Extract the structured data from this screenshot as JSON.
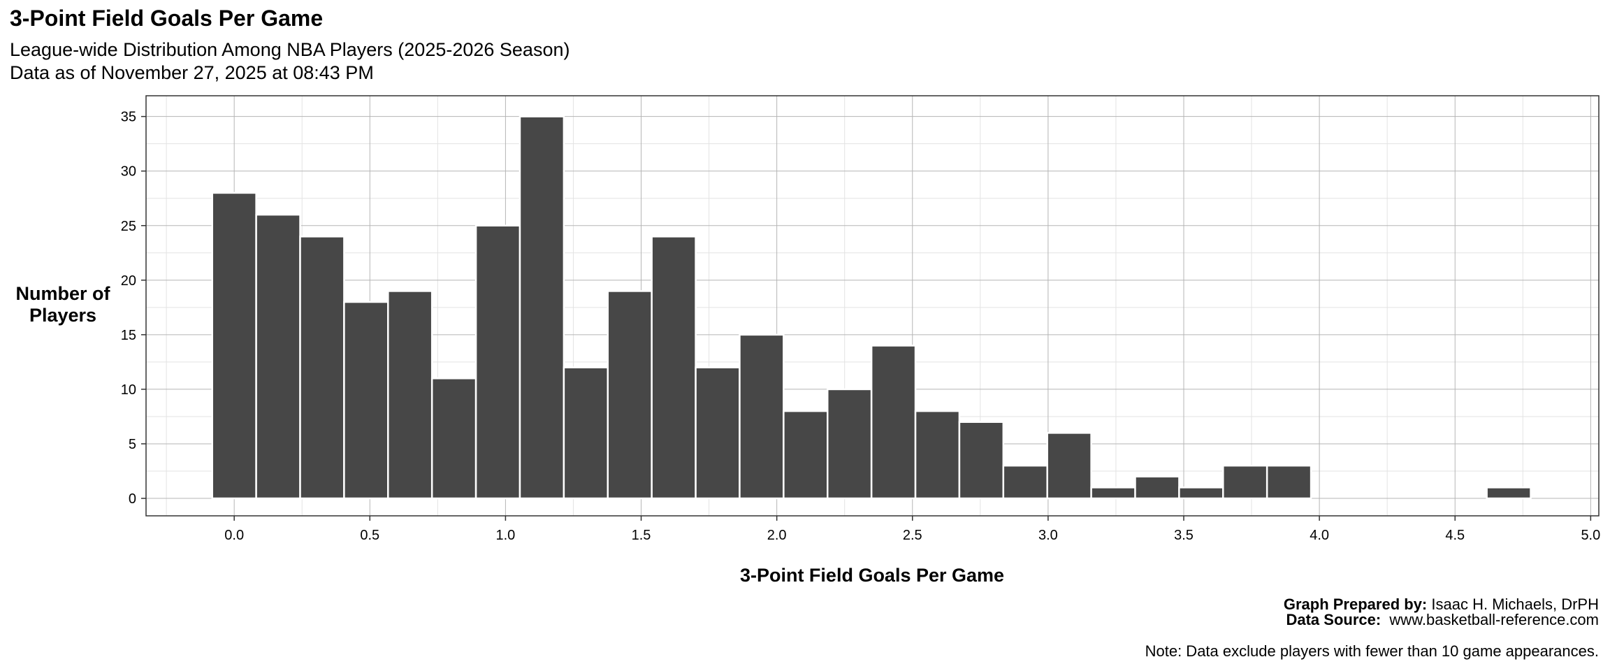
{
  "chart_data": {
    "type": "bar",
    "title": "3-Point Field Goals Per Game",
    "subtitle": [
      "League-wide Distribution Among NBA Players (2025-2026 Season)",
      "Data as of November 27, 2025 at 08:43 PM"
    ],
    "xlabel": "3-Point Field Goals Per Game",
    "ylabel": [
      "Number of",
      "Players"
    ],
    "bin_width": 0.162,
    "bin_centers_start": 0.0,
    "values": [
      28,
      26,
      24,
      18,
      19,
      11,
      25,
      35,
      12,
      19,
      24,
      12,
      15,
      8,
      10,
      14,
      8,
      7,
      3,
      6,
      1,
      2,
      1,
      3,
      3,
      0,
      0,
      0,
      0,
      1
    ],
    "xlim": [
      -0.325,
      5.03
    ],
    "ylim": [
      -1.6,
      36.9
    ],
    "xticks": [
      "0.0",
      "0.5",
      "1.0",
      "1.5",
      "2.0",
      "2.5",
      "3.0",
      "3.5",
      "4.0",
      "4.5",
      "5.0"
    ],
    "yticks": [
      "0",
      "5",
      "10",
      "15",
      "20",
      "25",
      "30",
      "35"
    ],
    "grid": true,
    "bar_color": "#474747"
  },
  "caption": {
    "prepared_label": "Graph Prepared by:",
    "prepared_value": "Isaac H. Michaels, DrPH",
    "source_label": "Data Source:",
    "source_value": "www.basketball-reference.com",
    "note": "Note: Data exclude players with fewer than 10 game appearances."
  }
}
